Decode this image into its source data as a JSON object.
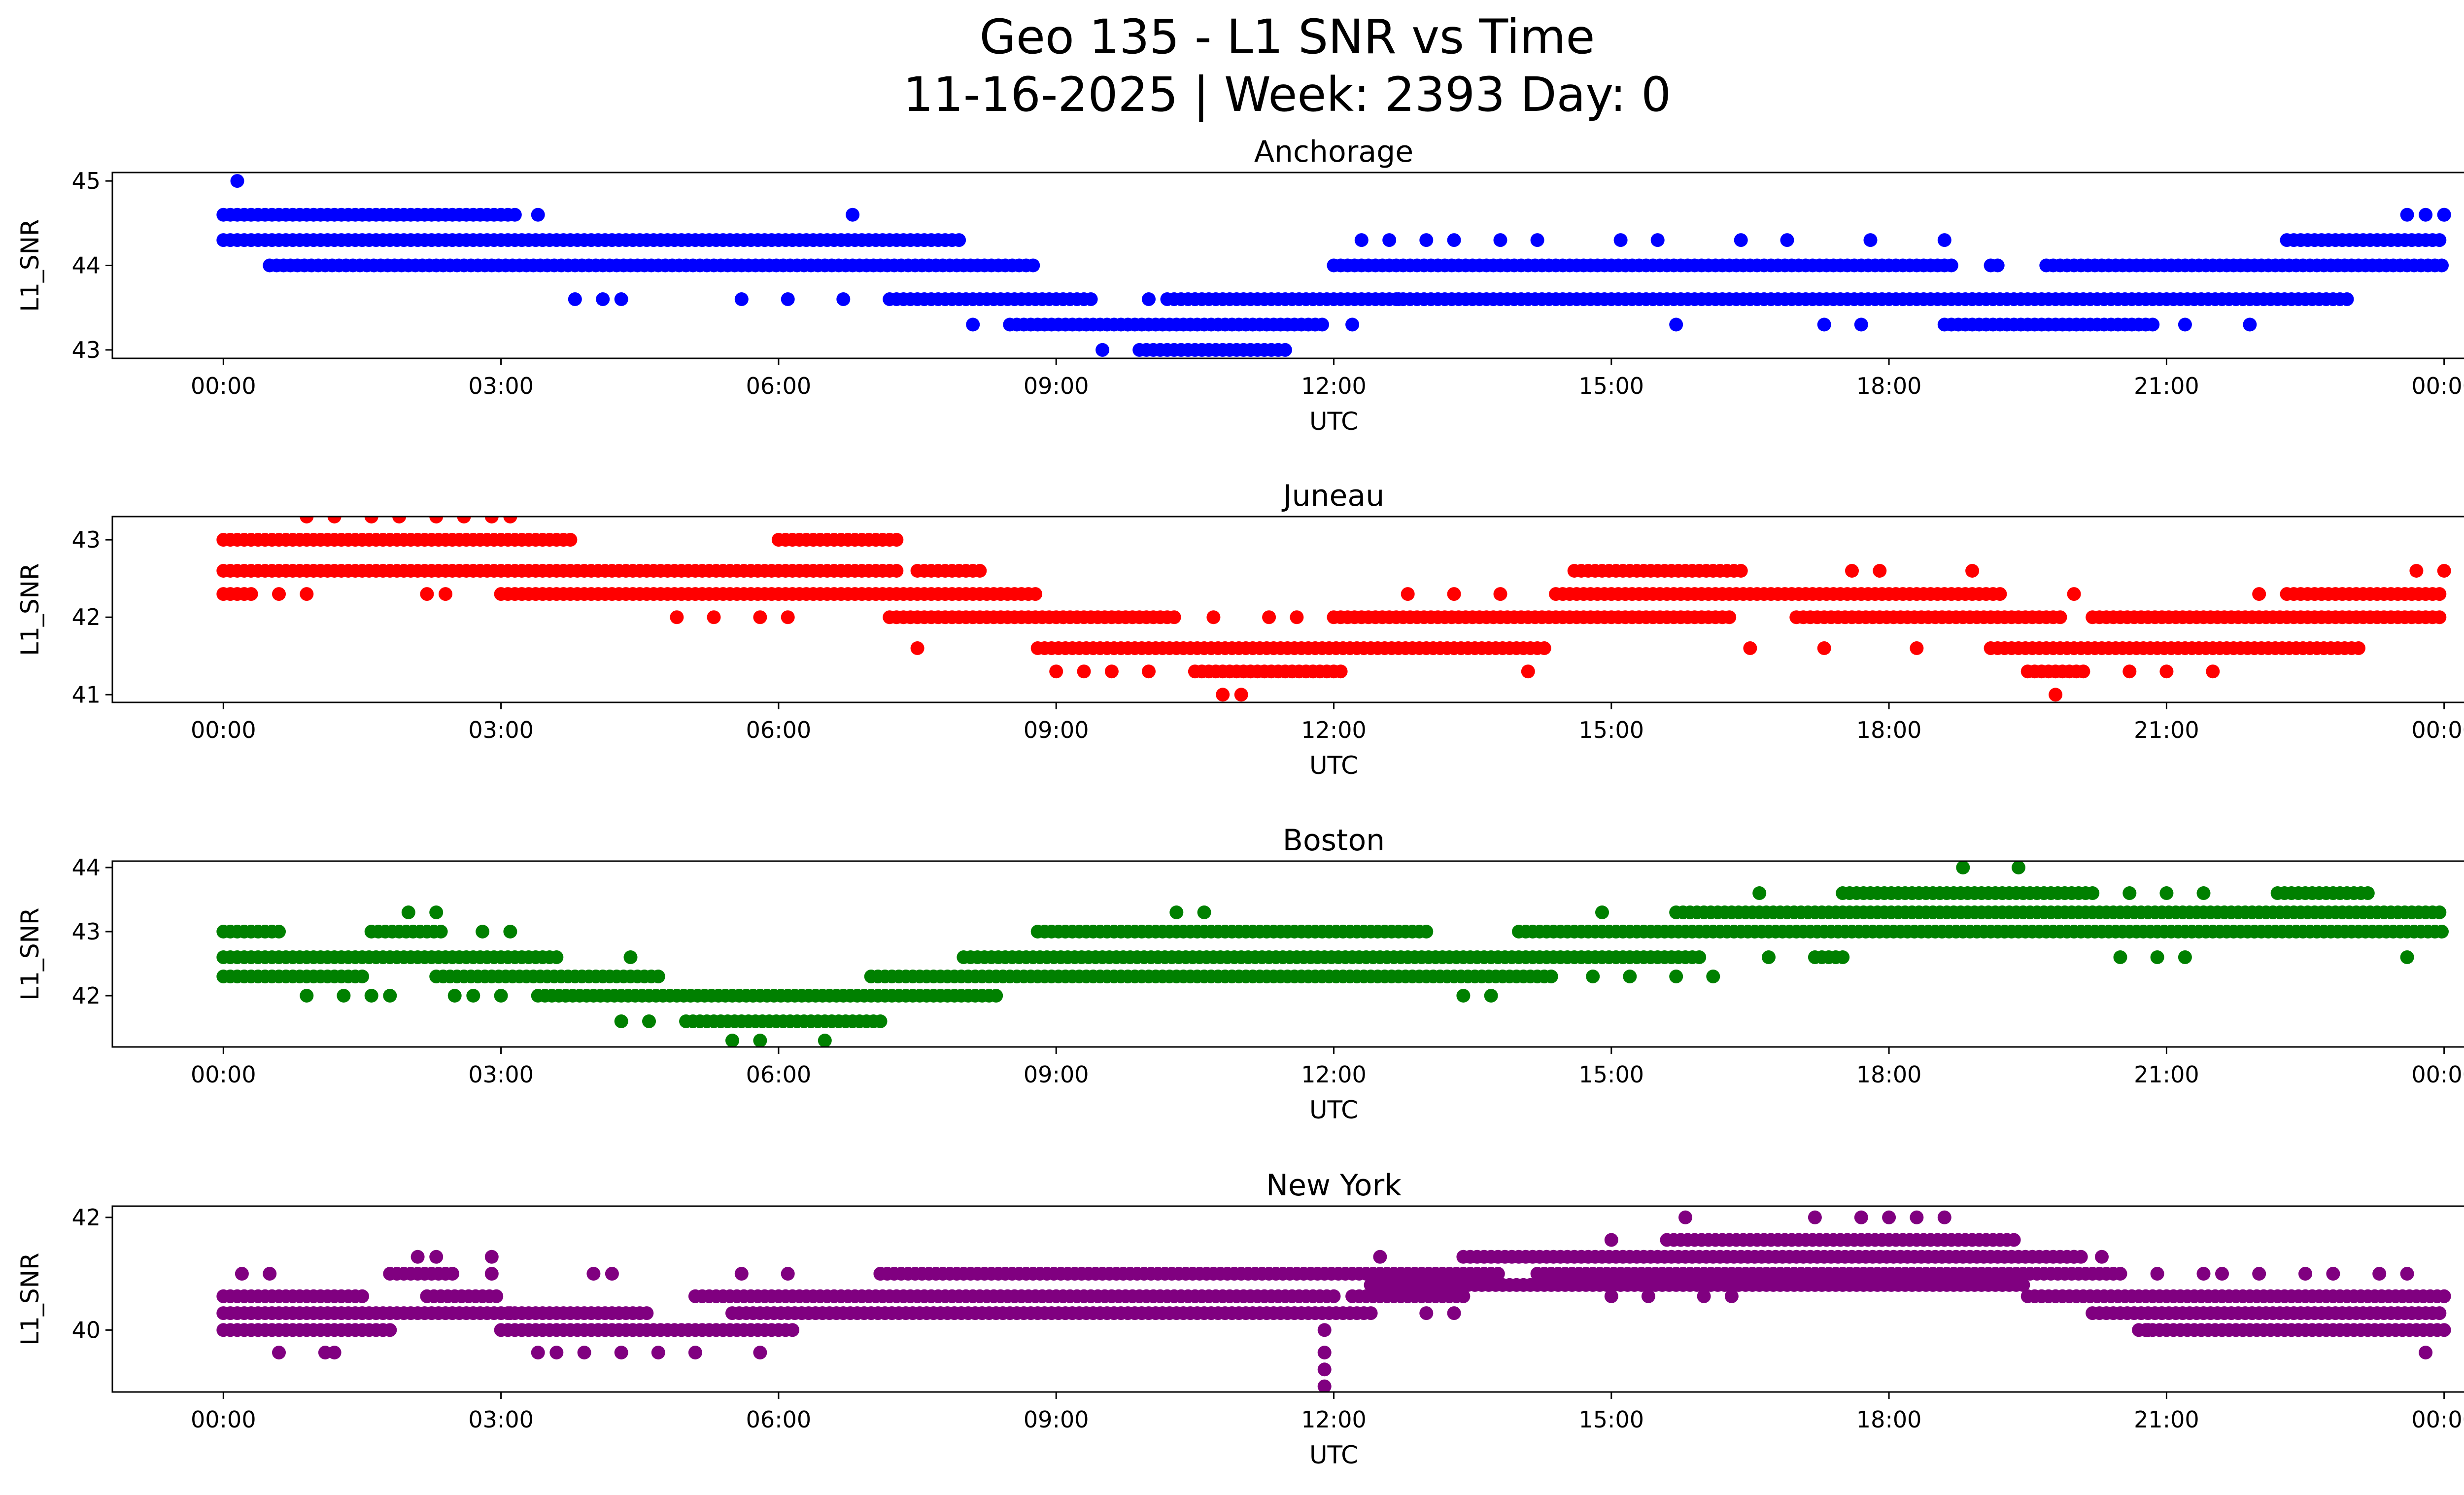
{
  "chart_data": {
    "type": "scatter",
    "title": "Geo 135 - L1 SNR vs Time",
    "subtitle": "11-16-2025 | Week: 2393 Day: 0",
    "xlabel": "UTC",
    "ylabel": "L1_SNR",
    "x_ticks": [
      "00:00",
      "03:00",
      "06:00",
      "09:00",
      "12:00",
      "15:00",
      "18:00",
      "21:00",
      "00:00"
    ],
    "x_range_hours": [
      -1.2,
      25.2
    ],
    "panels": [
      {
        "name": "Anchorage",
        "color": "#0000ff",
        "ylim": [
          42.9,
          45.1
        ],
        "yticks": [
          43,
          44,
          45
        ],
        "bands": [
          {
            "y": 44.3,
            "segments": [
              [
                0.0,
                8.0
              ],
              [
                22.3,
                24.0
              ]
            ]
          },
          {
            "y": 44.0,
            "segments": [
              [
                0.5,
                8.8
              ],
              [
                12.0,
                18.7
              ],
              [
                19.1,
                19.2
              ],
              [
                19.7,
                24.0
              ]
            ]
          },
          {
            "y": 43.6,
            "segments": [
              [
                7.2,
                9.4
              ],
              [
                10.2,
                23.0
              ]
            ]
          },
          {
            "y": 43.3,
            "segments": [
              [
                8.5,
                11.9
              ],
              [
                18.6,
                20.9
              ]
            ]
          },
          {
            "y": 44.6,
            "segments": [
              [
                0.0,
                3.2
              ],
              [
                24.0,
                24.0
              ]
            ]
          },
          {
            "y": 43.0,
            "segments": [
              [
                9.9,
                11.5
              ]
            ]
          }
        ],
        "scatter": [
          [
            0.15,
            45.0
          ],
          [
            6.8,
            44.6
          ],
          [
            3.4,
            44.6
          ],
          [
            23.6,
            44.6
          ],
          [
            23.8,
            44.6
          ],
          [
            3.8,
            43.6
          ],
          [
            4.1,
            43.6
          ],
          [
            4.3,
            43.6
          ],
          [
            5.6,
            43.6
          ],
          [
            6.1,
            43.6
          ],
          [
            6.7,
            43.6
          ],
          [
            8.1,
            43.3
          ],
          [
            9.5,
            43.0
          ],
          [
            12.2,
            43.3
          ],
          [
            15.7,
            43.3
          ],
          [
            17.3,
            43.3
          ],
          [
            17.7,
            43.3
          ],
          [
            21.2,
            43.3
          ],
          [
            21.9,
            43.3
          ],
          [
            12.3,
            44.3
          ],
          [
            12.6,
            44.3
          ],
          [
            13.0,
            44.3
          ],
          [
            13.3,
            44.3
          ],
          [
            13.8,
            44.3
          ],
          [
            14.2,
            44.3
          ],
          [
            15.1,
            44.3
          ],
          [
            15.5,
            44.3
          ],
          [
            16.4,
            44.3
          ],
          [
            16.9,
            44.3
          ],
          [
            17.8,
            44.3
          ],
          [
            18.6,
            44.3
          ],
          [
            10.0,
            43.6
          ],
          [
            10.5,
            43.6
          ],
          [
            12.7,
            43.6
          ],
          [
            18.9,
            43.6
          ]
        ]
      },
      {
        "name": "Juneau",
        "color": "#ff0000",
        "ylim": [
          40.9,
          43.3
        ],
        "yticks": [
          41,
          42,
          43
        ],
        "bands": [
          {
            "y": 43.0,
            "segments": [
              [
                0.0,
                3.8
              ],
              [
                6.0,
                7.3
              ]
            ]
          },
          {
            "y": 42.6,
            "segments": [
              [
                0.0,
                7.3
              ],
              [
                7.5,
                8.2
              ],
              [
                14.6,
                16.4
              ]
            ]
          },
          {
            "y": 42.3,
            "segments": [
              [
                0.0,
                0.3
              ],
              [
                3.0,
                8.8
              ],
              [
                14.4,
                19.2
              ],
              [
                22.3,
                24.0
              ]
            ]
          },
          {
            "y": 42.0,
            "segments": [
              [
                7.2,
                10.3
              ],
              [
                12.0,
                16.3
              ],
              [
                17.0,
                19.9
              ],
              [
                20.2,
                24.0
              ]
            ]
          },
          {
            "y": 41.6,
            "segments": [
              [
                8.8,
                14.3
              ],
              [
                19.1,
                23.1
              ]
            ]
          },
          {
            "y": 41.3,
            "segments": [
              [
                10.5,
                12.1
              ],
              [
                19.5,
                20.1
              ]
            ]
          }
        ],
        "scatter": [
          [
            0.9,
            43.3
          ],
          [
            1.2,
            43.3
          ],
          [
            1.6,
            43.3
          ],
          [
            1.9,
            43.3
          ],
          [
            2.3,
            43.3
          ],
          [
            2.6,
            43.3
          ],
          [
            2.9,
            43.3
          ],
          [
            3.1,
            43.3
          ],
          [
            0.6,
            42.3
          ],
          [
            0.9,
            42.3
          ],
          [
            2.2,
            42.3
          ],
          [
            2.4,
            42.3
          ],
          [
            4.9,
            42.0
          ],
          [
            5.3,
            42.0
          ],
          [
            6.1,
            42.0
          ],
          [
            5.8,
            42.0
          ],
          [
            7.5,
            41.6
          ],
          [
            9.0,
            41.3
          ],
          [
            9.3,
            41.3
          ],
          [
            9.6,
            41.3
          ],
          [
            10.0,
            41.3
          ],
          [
            10.8,
            41.0
          ],
          [
            11.0,
            41.0
          ],
          [
            10.7,
            42.0
          ],
          [
            11.3,
            42.0
          ],
          [
            11.6,
            42.0
          ],
          [
            12.8,
            42.3
          ],
          [
            13.3,
            42.3
          ],
          [
            13.8,
            42.3
          ],
          [
            14.1,
            41.3
          ],
          [
            16.5,
            41.6
          ],
          [
            17.3,
            41.6
          ],
          [
            17.6,
            42.6
          ],
          [
            17.9,
            42.6
          ],
          [
            18.9,
            42.6
          ],
          [
            18.3,
            41.6
          ],
          [
            19.8,
            41.0
          ],
          [
            20.0,
            42.3
          ],
          [
            20.6,
            41.3
          ],
          [
            21.0,
            41.3
          ],
          [
            21.5,
            41.3
          ],
          [
            22.0,
            42.3
          ],
          [
            23.7,
            42.6
          ],
          [
            24.0,
            42.6
          ]
        ]
      },
      {
        "name": "Boston",
        "color": "#008000",
        "ylim": [
          41.2,
          44.1
        ],
        "yticks": [
          42,
          43,
          44
        ],
        "bands": [
          {
            "y": 43.0,
            "segments": [
              [
                0.0,
                0.6
              ],
              [
                1.6,
                2.4
              ],
              [
                8.8,
                13.0
              ],
              [
                14.0,
                24.0
              ]
            ]
          },
          {
            "y": 42.6,
            "segments": [
              [
                0.0,
                3.6
              ],
              [
                8.0,
                16.0
              ],
              [
                17.2,
                17.5
              ]
            ]
          },
          {
            "y": 42.3,
            "segments": [
              [
                0.0,
                1.5
              ],
              [
                2.3,
                4.7
              ],
              [
                7.0,
                14.4
              ]
            ]
          },
          {
            "y": 42.0,
            "segments": [
              [
                3.4,
                8.4
              ]
            ]
          },
          {
            "y": 41.6,
            "segments": [
              [
                5.0,
                7.1
              ]
            ]
          },
          {
            "y": 43.3,
            "segments": [
              [
                15.7,
                24.0
              ]
            ]
          },
          {
            "y": 43.6,
            "segments": [
              [
                17.5,
                20.2
              ],
              [
                22.2,
                23.2
              ]
            ]
          }
        ],
        "scatter": [
          [
            1.3,
            42.0
          ],
          [
            1.6,
            42.0
          ],
          [
            1.8,
            42.0
          ],
          [
            0.9,
            42.0
          ],
          [
            2.0,
            43.3
          ],
          [
            2.3,
            43.3
          ],
          [
            2.8,
            43.0
          ],
          [
            3.1,
            43.0
          ],
          [
            2.5,
            42.0
          ],
          [
            2.7,
            42.0
          ],
          [
            3.0,
            42.0
          ],
          [
            4.4,
            42.6
          ],
          [
            4.3,
            41.6
          ],
          [
            4.6,
            41.6
          ],
          [
            5.5,
            41.3
          ],
          [
            5.8,
            41.3
          ],
          [
            6.5,
            41.3
          ],
          [
            10.3,
            43.3
          ],
          [
            10.6,
            43.3
          ],
          [
            13.4,
            42.0
          ],
          [
            13.7,
            42.0
          ],
          [
            14.8,
            42.3
          ],
          [
            15.2,
            42.3
          ],
          [
            15.7,
            42.3
          ],
          [
            16.1,
            42.3
          ],
          [
            14.9,
            43.3
          ],
          [
            16.6,
            43.6
          ],
          [
            16.7,
            42.6
          ],
          [
            18.8,
            44.0
          ],
          [
            19.4,
            44.0
          ],
          [
            20.5,
            42.6
          ],
          [
            20.9,
            42.6
          ],
          [
            21.2,
            42.6
          ],
          [
            20.6,
            43.6
          ],
          [
            21.0,
            43.6
          ],
          [
            21.4,
            43.6
          ],
          [
            23.6,
            42.6
          ]
        ]
      },
      {
        "name": "New York",
        "color": "#800080",
        "ylim": [
          38.9,
          42.2
        ],
        "yticks": [
          40,
          42
        ],
        "bands": [
          {
            "y": 40.6,
            "segments": [
              [
                0.0,
                1.5
              ],
              [
                2.2,
                3.0
              ],
              [
                5.1,
                12.0
              ],
              [
                12.2,
                13.4
              ],
              [
                19.5,
                24.0
              ]
            ]
          },
          {
            "y": 40.3,
            "segments": [
              [
                0.0,
                4.6
              ],
              [
                5.5,
                12.4
              ],
              [
                20.2,
                24.0
              ]
            ]
          },
          {
            "y": 40.0,
            "segments": [
              [
                0.0,
                1.8
              ],
              [
                3.0,
                6.2
              ],
              [
                20.7,
                24.0
              ]
            ]
          },
          {
            "y": 41.0,
            "segments": [
              [
                1.8,
                2.5
              ],
              [
                7.1,
                13.8
              ],
              [
                14.2,
                20.5
              ]
            ]
          },
          {
            "y": 40.8,
            "segments": [
              [
                12.4,
                19.5
              ]
            ]
          },
          {
            "y": 41.3,
            "segments": [
              [
                13.4,
                20.1
              ]
            ]
          },
          {
            "y": 41.6,
            "segments": [
              [
                15.6,
                19.4
              ]
            ]
          }
        ],
        "scatter": [
          [
            0.2,
            41.0
          ],
          [
            0.5,
            41.0
          ],
          [
            0.6,
            39.6
          ],
          [
            1.1,
            39.6
          ],
          [
            1.2,
            39.6
          ],
          [
            2.1,
            41.3
          ],
          [
            2.3,
            41.3
          ],
          [
            2.9,
            41.3
          ],
          [
            2.9,
            41.0
          ],
          [
            3.1,
            40.3
          ],
          [
            3.4,
            39.6
          ],
          [
            3.6,
            39.6
          ],
          [
            3.9,
            39.6
          ],
          [
            4.0,
            41.0
          ],
          [
            4.2,
            41.0
          ],
          [
            4.3,
            39.6
          ],
          [
            4.7,
            39.6
          ],
          [
            5.1,
            39.6
          ],
          [
            5.8,
            39.6
          ],
          [
            5.6,
            41.0
          ],
          [
            6.1,
            41.0
          ],
          [
            7.1,
            41.0
          ],
          [
            11.9,
            40.0
          ],
          [
            11.9,
            39.6
          ],
          [
            11.9,
            39.3
          ],
          [
            11.9,
            39.0
          ],
          [
            12.5,
            41.3
          ],
          [
            13.0,
            40.3
          ],
          [
            13.3,
            40.3
          ],
          [
            15.0,
            40.6
          ],
          [
            15.4,
            40.6
          ],
          [
            15.8,
            42.0
          ],
          [
            17.2,
            42.0
          ],
          [
            17.7,
            42.0
          ],
          [
            18.0,
            42.0
          ],
          [
            18.3,
            42.0
          ],
          [
            18.6,
            42.0
          ],
          [
            15.0,
            41.6
          ],
          [
            16.0,
            40.6
          ],
          [
            16.3,
            40.6
          ],
          [
            20.0,
            41.3
          ],
          [
            20.3,
            41.3
          ],
          [
            20.8,
            40.0
          ],
          [
            21.0,
            40.0
          ],
          [
            20.9,
            41.0
          ],
          [
            21.4,
            41.0
          ],
          [
            21.6,
            41.0
          ],
          [
            22.0,
            41.0
          ],
          [
            22.5,
            41.0
          ],
          [
            22.8,
            41.0
          ],
          [
            23.3,
            41.0
          ],
          [
            23.6,
            41.0
          ],
          [
            23.8,
            39.6
          ]
        ]
      }
    ]
  }
}
